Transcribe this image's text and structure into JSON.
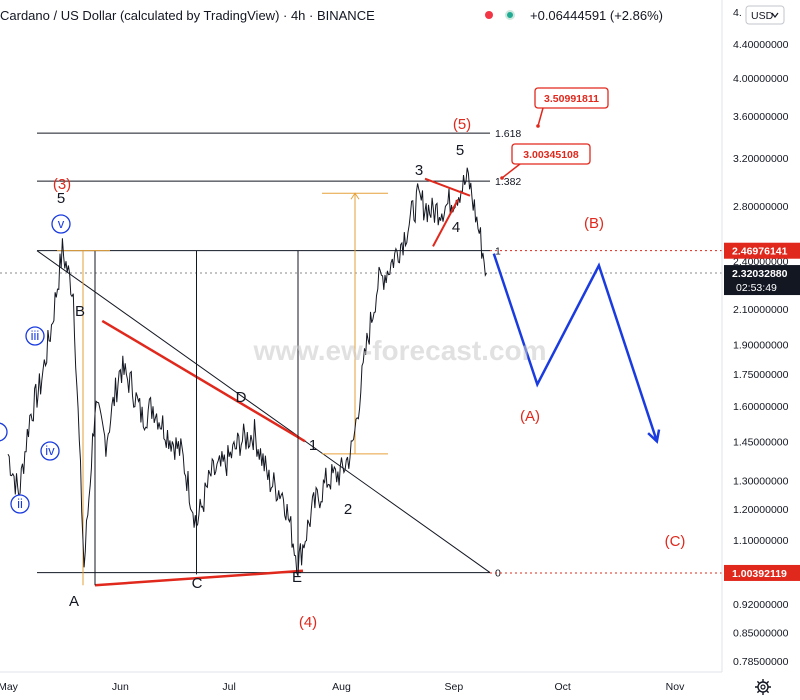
{
  "header": {
    "title": "Cardano / US Dollar (calculated by TradingView) · 4h · BINANCE",
    "change": "+0.06444591 (+2.86%)",
    "currency_label": "USD",
    "top_price_partial": "4."
  },
  "watermark": "www.ew-forecast.com",
  "chart_data": {
    "type": "line",
    "y_scale": "log",
    "ylim": [
      0.75,
      4.8
    ],
    "x_ticks": [
      "May",
      "Jun",
      "Jul",
      "Aug",
      "Sep",
      "Oct",
      "Nov"
    ],
    "y_ticks": [
      "4.40000000",
      "4.00000000",
      "3.60000000",
      "3.20000000",
      "2.80000000",
      "2.40000000",
      "2.10000000",
      "1.90000000",
      "1.75000000",
      "1.60000000",
      "1.45000000",
      "1.30000000",
      "1.20000000",
      "1.10000000",
      "1.00000000",
      "0.92000000",
      "0.85000000",
      "0.78500000"
    ],
    "price_series_dates": [
      "2021-05-01",
      "2021-05-04",
      "2021-05-07",
      "2021-05-10",
      "2021-05-13",
      "2021-05-16",
      "2021-05-19",
      "2021-05-22",
      "2021-05-25",
      "2021-05-28",
      "2021-06-01",
      "2021-06-04",
      "2021-06-07",
      "2021-06-10",
      "2021-06-14",
      "2021-06-18",
      "2021-06-22",
      "2021-06-26",
      "2021-06-30",
      "2021-07-04",
      "2021-07-08",
      "2021-07-12",
      "2021-07-16",
      "2021-07-20",
      "2021-07-24",
      "2021-07-28",
      "2021-08-01",
      "2021-08-04",
      "2021-08-08",
      "2021-08-11",
      "2021-08-14",
      "2021-08-18",
      "2021-08-22",
      "2021-08-26",
      "2021-08-30",
      "2021-09-02",
      "2021-09-05",
      "2021-09-08",
      "2021-09-10"
    ],
    "price_series_values": [
      1.4,
      1.25,
      1.55,
      1.7,
      2.0,
      2.47,
      2.2,
      1.02,
      1.6,
      1.45,
      1.78,
      1.7,
      1.55,
      1.6,
      1.48,
      1.4,
      1.15,
      1.32,
      1.36,
      1.45,
      1.48,
      1.3,
      1.25,
      1.03,
      1.2,
      1.3,
      1.33,
      1.42,
      1.9,
      2.25,
      2.35,
      2.55,
      2.85,
      2.75,
      2.8,
      2.9,
      3.02,
      2.6,
      2.32
    ],
    "projection_dates": [
      "2021-09-12",
      "2021-09-24",
      "2021-10-11",
      "2021-10-27"
    ],
    "projection_values": [
      2.45,
      1.7,
      2.37,
      1.45
    ],
    "triangle_points": [
      {
        "label": "A",
        "date": "2021-05-25",
        "value": 0.97
      },
      {
        "label": "B",
        "date": "2021-05-27",
        "value": 2.03
      },
      {
        "label": "C",
        "date": "2021-06-22",
        "value": 1.0
      },
      {
        "label": "D",
        "date": "2021-07-19",
        "value": 1.4
      },
      {
        "label": "E",
        "date": "2021-07-20",
        "value": 1.01
      }
    ],
    "fib_levels": [
      {
        "label": "1.618",
        "value": 3.43
      },
      {
        "label": "1.382",
        "value": 3.0
      },
      {
        "label": "1",
        "value": 2.47
      },
      {
        "label": "0",
        "value": 1.005
      }
    ],
    "price_tags": [
      {
        "label": "2.46976141",
        "value": 2.46976141,
        "color": "#e0281c"
      },
      {
        "label": "2.32032880",
        "value": 2.3203288,
        "color": "#131722",
        "countdown": "02:53:49"
      },
      {
        "label": "1.00392119",
        "value": 1.00392119,
        "color": "#e0281c"
      }
    ],
    "callouts": [
      {
        "label": "3.50991811"
      },
      {
        "label": "3.00345108"
      }
    ],
    "wave_labels_black": [
      "5",
      "B",
      "D",
      "1",
      "2",
      "3",
      "4",
      "5",
      "A",
      "C",
      "E"
    ],
    "wave_labels_red": [
      "(3)",
      "(5)",
      "(B)",
      "(A)",
      "(C)",
      "(4)"
    ],
    "wave_labels_blue": [
      "v",
      "iii",
      "iv",
      "ii"
    ]
  }
}
